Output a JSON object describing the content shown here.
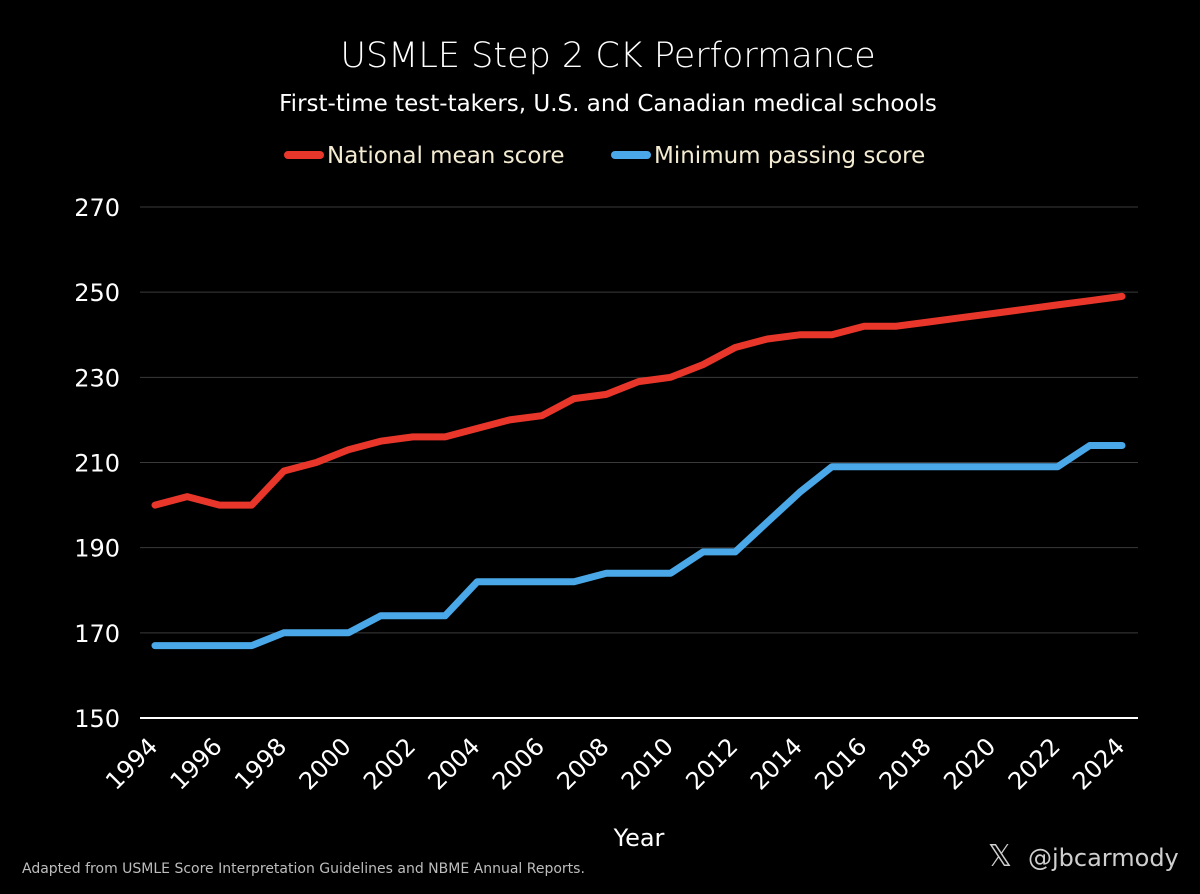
{
  "chart_data": {
    "type": "line",
    "title": "USMLE Step 2 CK Performance",
    "subtitle": "First-time test-takers, U.S. and Canadian medical schools",
    "xlabel": "Year",
    "ylabel": "",
    "ylim": [
      150,
      270
    ],
    "yticks": [
      150,
      170,
      190,
      210,
      230,
      250,
      270
    ],
    "xticks": [
      "1994",
      "1996",
      "1998",
      "2000",
      "2002",
      "2004",
      "2006",
      "2008",
      "2010",
      "2012",
      "2014",
      "2016",
      "2018",
      "2020",
      "2022",
      "2024"
    ],
    "x": [
      1994,
      1995,
      1996,
      1997,
      1998,
      1999,
      2000,
      2001,
      2002,
      2003,
      2004,
      2005,
      2006,
      2007,
      2008,
      2009,
      2010,
      2011,
      2012,
      2013,
      2014,
      2015,
      2016,
      2017,
      2018,
      2019,
      2020,
      2021,
      2022,
      2023,
      2024
    ],
    "series": [
      {
        "name": "National mean score",
        "color": "#e8362b",
        "values": [
          200,
          202,
          200,
          200,
          208,
          210,
          213,
          215,
          216,
          216,
          218,
          220,
          221,
          225,
          226,
          229,
          230,
          233,
          237,
          239,
          240,
          240,
          242,
          242,
          243,
          244,
          245,
          246,
          247,
          248,
          249
        ]
      },
      {
        "name": "Minimum passing score",
        "color": "#4aa8e8",
        "values": [
          167,
          167,
          167,
          167,
          170,
          170,
          170,
          174,
          174,
          174,
          182,
          182,
          182,
          182,
          184,
          184,
          184,
          189,
          189,
          196,
          203,
          209,
          209,
          209,
          209,
          209,
          209,
          209,
          209,
          214,
          214
        ]
      }
    ],
    "legend_position": "top-center",
    "grid": true
  },
  "footer_note": "Adapted from USMLE Score Interpretation Guidelines and NBME Annual Reports.",
  "x_logo_glyph": "𝕏",
  "handle": "@jbcarmody"
}
